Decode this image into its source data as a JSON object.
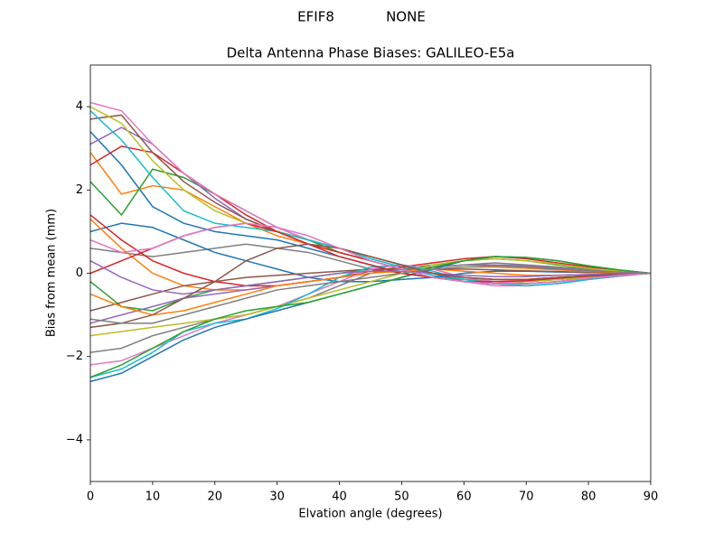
{
  "chart_data": {
    "type": "line",
    "suptitle": "EFIF8            NONE",
    "title": "Delta Antenna Phase Biases: GALILEO-E5a",
    "x_label": "Elvation angle (degrees)",
    "y_label": "Bias from mean (mm)",
    "x": [
      0,
      5,
      10,
      15,
      20,
      25,
      30,
      35,
      40,
      45,
      50,
      55,
      60,
      65,
      70,
      75,
      80,
      85,
      90
    ],
    "xlim": [
      0,
      90
    ],
    "xticks": [
      0,
      10,
      20,
      30,
      40,
      50,
      60,
      70,
      80,
      90
    ],
    "ylim": [
      -5,
      5
    ],
    "yticks": [
      {
        "value": -4,
        "label": "−4"
      },
      {
        "value": -2,
        "label": "−2"
      },
      0,
      2,
      4
    ],
    "grid": false,
    "series": [
      {
        "color": "#1f77b4",
        "values": [
          3.4,
          2.6,
          1.6,
          1.2,
          1.0,
          0.9,
          0.8,
          0.6,
          0.4,
          0.2,
          0.0,
          -0.1,
          -0.2,
          -0.25,
          -0.2,
          -0.15,
          -0.1,
          -0.05,
          0
        ]
      },
      {
        "color": "#ff7f0e",
        "values": [
          2.9,
          1.9,
          2.1,
          2.0,
          1.6,
          1.2,
          0.9,
          0.7,
          0.5,
          0.3,
          0.1,
          0.0,
          -0.1,
          -0.15,
          -0.15,
          -0.1,
          -0.07,
          -0.03,
          0
        ]
      },
      {
        "color": "#2ca02c",
        "values": [
          2.2,
          1.4,
          2.5,
          2.3,
          1.9,
          1.5,
          1.1,
          0.8,
          0.5,
          0.3,
          0.1,
          -0.1,
          -0.2,
          -0.25,
          -0.25,
          -0.2,
          -0.12,
          -0.05,
          0
        ]
      },
      {
        "color": "#d62728",
        "values": [
          2.6,
          3.05,
          2.9,
          2.4,
          1.9,
          1.4,
          1.0,
          0.7,
          0.5,
          0.3,
          0.1,
          0.0,
          -0.1,
          -0.15,
          -0.15,
          -0.1,
          -0.06,
          -0.03,
          0
        ]
      },
      {
        "color": "#9467bd",
        "values": [
          3.1,
          3.5,
          3.1,
          2.4,
          1.8,
          1.3,
          1.0,
          0.8,
          0.6,
          0.4,
          0.2,
          0.0,
          -0.15,
          -0.25,
          -0.3,
          -0.25,
          -0.15,
          -0.07,
          0
        ]
      },
      {
        "color": "#8c564b",
        "values": [
          3.7,
          3.8,
          2.9,
          2.2,
          1.7,
          1.3,
          1.0,
          0.8,
          0.6,
          0.4,
          0.2,
          0.0,
          -0.2,
          -0.25,
          -0.25,
          -0.2,
          -0.12,
          -0.05,
          0
        ]
      },
      {
        "color": "#e377c2",
        "values": [
          4.1,
          3.9,
          3.1,
          2.4,
          1.9,
          1.5,
          1.1,
          0.8,
          0.6,
          0.4,
          0.2,
          -0.05,
          -0.2,
          -0.3,
          -0.3,
          -0.25,
          -0.15,
          -0.07,
          0
        ]
      },
      {
        "color": "#7f7f7f",
        "values": [
          0.6,
          0.5,
          0.4,
          0.5,
          0.6,
          0.7,
          0.6,
          0.5,
          0.3,
          0.1,
          0.0,
          -0.1,
          -0.15,
          -0.2,
          -0.2,
          -0.15,
          -0.1,
          -0.05,
          0
        ]
      },
      {
        "color": "#bcbd22",
        "values": [
          4.0,
          3.6,
          2.7,
          2.0,
          1.5,
          1.2,
          1.0,
          0.8,
          0.6,
          0.4,
          0.2,
          0.0,
          -0.1,
          -0.2,
          -0.2,
          -0.15,
          -0.1,
          -0.05,
          0
        ]
      },
      {
        "color": "#17becf",
        "values": [
          3.9,
          3.2,
          2.3,
          1.5,
          1.2,
          1.1,
          1.0,
          0.8,
          0.6,
          0.35,
          0.15,
          -0.05,
          -0.2,
          -0.25,
          -0.25,
          -0.2,
          -0.12,
          -0.05,
          0
        ]
      },
      {
        "color": "#1f77b4",
        "values": [
          1.0,
          1.2,
          1.1,
          0.8,
          0.5,
          0.3,
          0.1,
          -0.1,
          -0.2,
          -0.2,
          -0.15,
          -0.1,
          0.0,
          0.05,
          0.05,
          0.03,
          0.02,
          0.01,
          0
        ]
      },
      {
        "color": "#ff7f0e",
        "values": [
          1.3,
          0.6,
          0.0,
          -0.3,
          -0.4,
          -0.4,
          -0.3,
          -0.2,
          -0.1,
          0.0,
          0.1,
          0.1,
          0.05,
          0.0,
          -0.05,
          -0.05,
          -0.03,
          -0.01,
          0
        ]
      },
      {
        "color": "#2ca02c",
        "values": [
          -0.2,
          -0.8,
          -0.9,
          -0.6,
          -0.4,
          -0.3,
          -0.2,
          -0.1,
          0.0,
          0.1,
          0.1,
          0.2,
          0.3,
          0.35,
          0.3,
          0.2,
          0.12,
          0.05,
          0
        ]
      },
      {
        "color": "#d62728",
        "values": [
          1.4,
          0.8,
          0.3,
          0.0,
          -0.2,
          -0.3,
          -0.3,
          -0.2,
          -0.1,
          0.05,
          0.15,
          0.25,
          0.35,
          0.4,
          0.35,
          0.25,
          0.15,
          0.06,
          0
        ]
      },
      {
        "color": "#9467bd",
        "values": [
          -1.2,
          -1.0,
          -0.8,
          -0.6,
          -0.5,
          -0.4,
          -0.3,
          -0.2,
          -0.1,
          0.0,
          0.1,
          0.15,
          0.2,
          0.2,
          0.18,
          0.12,
          0.07,
          0.03,
          0
        ]
      },
      {
        "color": "#8c564b",
        "values": [
          -0.9,
          -0.7,
          -0.5,
          -0.3,
          -0.2,
          -0.1,
          -0.05,
          0.0,
          0.05,
          0.1,
          0.1,
          0.1,
          0.1,
          0.08,
          0.06,
          0.04,
          0.02,
          0.01,
          0
        ]
      },
      {
        "color": "#e377c2",
        "values": [
          -2.2,
          -2.1,
          -1.8,
          -1.5,
          -1.2,
          -1.0,
          -0.8,
          -0.5,
          -0.2,
          0.1,
          0.2,
          0.1,
          -0.1,
          -0.2,
          -0.25,
          -0.2,
          -0.12,
          -0.05,
          0
        ]
      },
      {
        "color": "#7f7f7f",
        "values": [
          -1.9,
          -1.8,
          -1.5,
          -1.3,
          -1.1,
          -1.0,
          -0.8,
          -0.6,
          -0.3,
          0.0,
          0.1,
          0.15,
          0.2,
          0.25,
          0.2,
          0.15,
          0.1,
          0.04,
          0
        ]
      },
      {
        "color": "#bcbd22",
        "values": [
          -1.5,
          -1.4,
          -1.3,
          -1.2,
          -1.1,
          -1.0,
          -0.8,
          -0.6,
          -0.4,
          -0.2,
          0.0,
          0.2,
          0.3,
          0.35,
          0.3,
          0.22,
          0.12,
          0.05,
          0
        ]
      },
      {
        "color": "#17becf",
        "values": [
          -2.5,
          -2.3,
          -1.9,
          -1.4,
          -1.2,
          -1.1,
          -0.85,
          -0.5,
          -0.1,
          0.15,
          0.2,
          0.05,
          -0.15,
          -0.25,
          -0.3,
          -0.25,
          -0.15,
          -0.06,
          0
        ]
      },
      {
        "color": "#1f77b4",
        "values": [
          -2.6,
          -2.4,
          -2.0,
          -1.6,
          -1.3,
          -1.1,
          -0.9,
          -0.7,
          -0.5,
          -0.3,
          -0.1,
          0.1,
          0.3,
          0.4,
          0.38,
          0.3,
          0.18,
          0.08,
          0
        ]
      },
      {
        "color": "#ff7f0e",
        "values": [
          -0.5,
          -0.8,
          -1.0,
          -0.9,
          -0.7,
          -0.5,
          -0.3,
          -0.2,
          -0.1,
          0.0,
          0.05,
          0.1,
          0.15,
          0.15,
          0.12,
          0.08,
          0.05,
          0.02,
          0
        ]
      },
      {
        "color": "#2ca02c",
        "values": [
          -2.5,
          -2.2,
          -1.8,
          -1.4,
          -1.1,
          -0.9,
          -0.8,
          -0.7,
          -0.5,
          -0.3,
          -0.1,
          0.15,
          0.3,
          0.4,
          0.38,
          0.3,
          0.18,
          0.08,
          0
        ]
      },
      {
        "color": "#d62728",
        "values": [
          0.0,
          0.3,
          0.6,
          0.9,
          1.1,
          1.2,
          1.0,
          0.7,
          0.4,
          0.2,
          0.0,
          -0.1,
          -0.2,
          -0.2,
          -0.18,
          -0.12,
          -0.07,
          -0.03,
          0
        ]
      },
      {
        "color": "#9467bd",
        "values": [
          0.3,
          -0.1,
          -0.4,
          -0.5,
          -0.4,
          -0.3,
          -0.2,
          -0.1,
          0.0,
          0.05,
          0.05,
          0.0,
          -0.05,
          -0.08,
          -0.08,
          -0.05,
          -0.03,
          -0.01,
          0
        ]
      },
      {
        "color": "#8c564b",
        "values": [
          -1.3,
          -1.2,
          -1.0,
          -0.6,
          -0.2,
          0.3,
          0.6,
          0.7,
          0.6,
          0.4,
          0.2,
          0.0,
          -0.1,
          -0.15,
          -0.15,
          -0.1,
          -0.06,
          -0.03,
          0
        ]
      },
      {
        "color": "#e377c2",
        "values": [
          0.8,
          0.5,
          0.6,
          0.9,
          1.1,
          1.2,
          1.1,
          0.9,
          0.6,
          0.3,
          0.1,
          -0.1,
          -0.2,
          -0.25,
          -0.25,
          -0.2,
          -0.12,
          -0.05,
          0
        ]
      },
      {
        "color": "#7f7f7f",
        "values": [
          -1.1,
          -1.2,
          -1.2,
          -1.0,
          -0.8,
          -0.6,
          -0.4,
          -0.3,
          -0.2,
          -0.1,
          0.0,
          0.1,
          0.15,
          0.18,
          0.15,
          0.1,
          0.06,
          0.03,
          0
        ]
      }
    ]
  }
}
